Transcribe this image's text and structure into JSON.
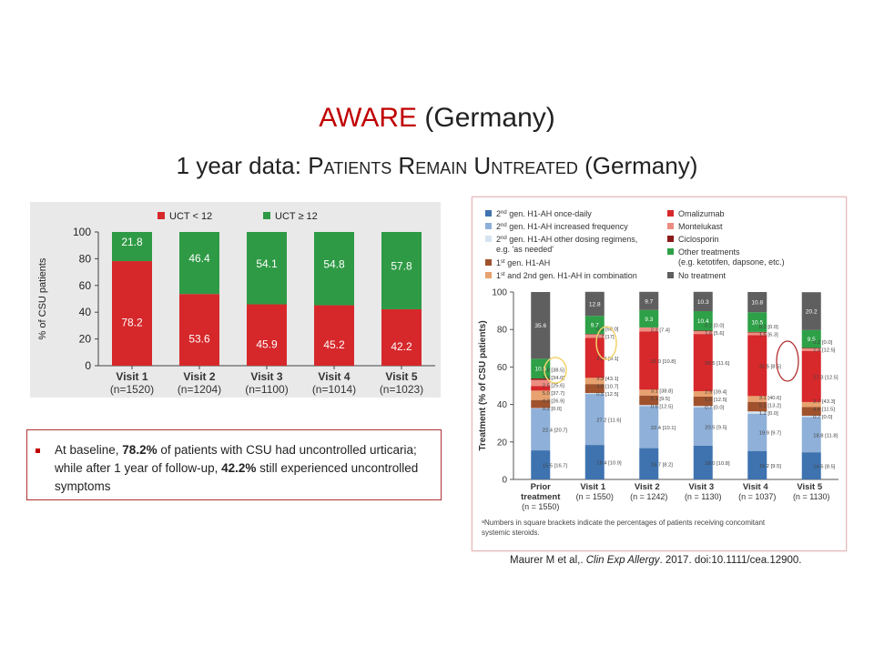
{
  "title": {
    "red_part": "AWARE",
    "black_part": "(Germany)"
  },
  "subtitle": {
    "p1": "1 year data: ",
    "p2": "Patients Remain Untreated",
    "p3": " (Germany)"
  },
  "chart_data": [
    {
      "type": "bar",
      "stacked": true,
      "ylabel": "% of CSU patients",
      "ylim": [
        0,
        100
      ],
      "yticks": [
        "0",
        "20",
        "40",
        "60",
        "80",
        "100"
      ],
      "categories": [
        "Visit 1",
        "Visit 2",
        "Visit 3",
        "Visit 4",
        "Visit 5"
      ],
      "category_sub": [
        "(n=1520)",
        "(n=1204)",
        "(n=1100)",
        "(n=1014)",
        "(n=1023)"
      ],
      "legend_position": "top",
      "series": [
        {
          "name": "UCT < 12",
          "color": "#d6282b",
          "values": [
            78.2,
            53.6,
            45.9,
            45.2,
            42.2
          ],
          "labels": [
            "78.2",
            "53.6",
            "45.9",
            "45.2",
            "42.2"
          ]
        },
        {
          "name": "UCT ≥ 12",
          "color": "#2f9a45",
          "values": [
            21.8,
            46.4,
            54.1,
            54.8,
            57.8
          ],
          "labels": [
            "21.8",
            "46.4",
            "54.1",
            "54.8",
            "57.8"
          ]
        }
      ]
    },
    {
      "type": "bar",
      "stacked": true,
      "ylabel": "Treatment (% of CSU patients)",
      "ylim": [
        0,
        100
      ],
      "yticks": [
        "0",
        "20",
        "40",
        "60",
        "80",
        "100"
      ],
      "categories": [
        "Prior\ntreatment",
        "Visit 1",
        "Visit 2",
        "Visit 3",
        "Visit 4",
        "Visit 5"
      ],
      "category_sub": [
        "(n = 1550)",
        "(n = 1550)",
        "(n = 1242)",
        "(n = 1130)",
        "(n = 1037)",
        "(n = 1130)"
      ],
      "legend": [
        {
          "name": "2nd gen. H1-AH once-daily",
          "sup": "nd",
          "pre": "2",
          "rest": " gen. H1-AH once-daily",
          "color": "#3e73b0"
        },
        {
          "name": "2nd gen. H1-AH increased frequency",
          "pre": "2",
          "sup": "nd",
          "rest": " gen. H1-AH increased frequency",
          "color": "#8fb0d8"
        },
        {
          "name": "2nd gen. H1-AH other dosing regimens, e.g. 'as needed'",
          "pre": "2",
          "sup": "nd",
          "rest": " gen. H1-AH other dosing regimens,",
          "rest2": "e.g. 'as needed'",
          "color": "#d7e3f1"
        },
        {
          "name": "1st gen. H1-AH",
          "pre": "1",
          "sup": "st",
          "rest": " gen. H1-AH",
          "color": "#a0522d"
        },
        {
          "name": "1st and 2nd gen. H1-AH in combination",
          "pre": "1",
          "sup": "st",
          "rest": " and 2nd gen. H1-AH in combination",
          "color": "#e7a26f"
        },
        {
          "name": "Omalizumab",
          "rest": "Omalizumab",
          "color": "#d7282b"
        },
        {
          "name": "Montelukast",
          "rest": "Montelukast",
          "color": "#ec8d82"
        },
        {
          "name": "Ciclosporin",
          "rest": "Ciclosporin",
          "color": "#8b1a1a"
        },
        {
          "name": "Other treatments (e.g. ketotifen, dapsone, etc.)",
          "rest": "Other treatments",
          "rest2": "(e.g. ketotifen, dapsone, etc.)",
          "color": "#2ea047"
        },
        {
          "name": "No treatment",
          "rest": "No treatment",
          "color": "#5f5f5f"
        }
      ],
      "segments": [
        [
          {
            "series": "2nd gen. H1-AH once-daily",
            "value": 15.5,
            "label": "15.5 [16.7]"
          },
          {
            "series": "2nd gen. H1-AH increased frequency",
            "value": 22.4,
            "label": "22.4 [20.7]"
          },
          {
            "series": "2nd gen. H1-AH other dosing regimens, e.g. 'as needed'",
            "value": 0.2,
            "label": "0.2 [0.0]"
          },
          {
            "series": "1st gen. H1-AH",
            "value": 4.3,
            "label": "4.3 [26.9]"
          },
          {
            "series": "1st and 2nd gen. H1-AH in combination",
            "value": 5.0,
            "label": "5.0 [37.7]"
          },
          {
            "series": "Omalizumab",
            "value": 2.5,
            "label": "2.5 [25.6]"
          },
          {
            "series": "Montelukast",
            "value": 3.2,
            "label": "3.2 [34.0]"
          },
          {
            "series": "Ciclosporin",
            "value": 0.8,
            "label": "0.8 [38.5]"
          },
          {
            "series": "Other treatments (e.g. ketotifen, dapsone, etc.)",
            "value": 10.5,
            "label": "10.5"
          },
          {
            "series": "No treatment",
            "value": 35.6,
            "label": "35.6"
          }
        ],
        [
          {
            "series": "2nd gen. H1-AH once-daily",
            "value": 18.4,
            "label": "18.4 [10.9]"
          },
          {
            "series": "2nd gen. H1-AH increased frequency",
            "value": 27.2,
            "label": "27.2 [11.6]"
          },
          {
            "series": "2nd gen. H1-AH other dosing regimens, e.g. 'as needed'",
            "value": 0.5,
            "label": "0.5 [12.5]"
          },
          {
            "series": "1st gen. H1-AH",
            "value": 4.8,
            "label": "4.8 [10.7]"
          },
          {
            "series": "1st and 2nd gen. H1-AH in combination",
            "value": 3.3,
            "label": "3.3 [43.1]"
          },
          {
            "series": "Omalizumab",
            "value": 21.4,
            "label": "21.4 [9.1]"
          },
          {
            "series": "Montelukast",
            "value": 1.7,
            "label": "1.7 [17]"
          },
          {
            "series": "Ciclosporin",
            "value": 0.3,
            "label": "0.3 [50.0]"
          },
          {
            "series": "Other treatments (e.g. ketotifen, dapsone, etc.)",
            "value": 9.7,
            "label": "9.7"
          },
          {
            "series": "No treatment",
            "value": 12.8,
            "label": "12.8"
          }
        ],
        [
          {
            "series": "2nd gen. H1-AH once-daily",
            "value": 16.7,
            "label": "16.7 [8.2]"
          },
          {
            "series": "2nd gen. H1-AH increased frequency",
            "value": 22.4,
            "label": "22.4 [10.1]"
          },
          {
            "series": "2nd gen. H1-AH other dosing regimens, e.g. 'as needed'",
            "value": 0.6,
            "label": "0.6 [12.5]"
          },
          {
            "series": "1st gen. H1-AH",
            "value": 5.1,
            "label": "5.1 [9.5]"
          },
          {
            "series": "1st and 2nd gen. H1-AH in combination",
            "value": 3.1,
            "label": "3.1 [38.8]"
          },
          {
            "series": "Omalizumab",
            "value": 31.0,
            "label": "31.0 [10.8]"
          },
          {
            "series": "Montelukast",
            "value": 2.2,
            "label": "2.2 [7.4]"
          },
          {
            "series": "Ciclosporin",
            "value": 0.0,
            "label": ""
          },
          {
            "series": "Other treatments (e.g. ketotifen, dapsone, etc.)",
            "value": 9.3,
            "label": "9.3"
          },
          {
            "series": "No treatment",
            "value": 9.7,
            "label": "9.7"
          }
        ],
        [
          {
            "series": "2nd gen. H1-AH once-daily",
            "value": 18.0,
            "label": "18.0 [10.8]"
          },
          {
            "series": "2nd gen. H1-AH increased frequency",
            "value": 20.5,
            "label": "20.5 [9.5]"
          },
          {
            "series": "2nd gen. H1-AH other dosing regimens, e.g. 'as needed'",
            "value": 0.7,
            "label": "0.7 [0.0]"
          },
          {
            "series": "1st gen. H1-AH",
            "value": 5.0,
            "label": "5.0 [12.5]"
          },
          {
            "series": "1st and 2nd gen. H1-AH in combination",
            "value": 2.9,
            "label": "2.9 [39.4]"
          },
          {
            "series": "Omalizumab",
            "value": 30.5,
            "label": "30.5 [11.6]"
          },
          {
            "series": "Montelukast",
            "value": 1.6,
            "label": "1.6 [5.6]"
          },
          {
            "series": "Ciclosporin",
            "value": 0.2,
            "label": "0.2 [0.0]"
          },
          {
            "series": "Other treatments (e.g. ketotifen, dapsone, etc.)",
            "value": 10.4,
            "label": "10.4"
          },
          {
            "series": "No treatment",
            "value": 10.3,
            "label": "10.3"
          }
        ],
        [
          {
            "series": "2nd gen. H1-AH once-daily",
            "value": 15.2,
            "label": "15.2 [9.5]"
          },
          {
            "series": "2nd gen. H1-AH increased frequency",
            "value": 19.9,
            "label": "19.9 [9.7]"
          },
          {
            "series": "2nd gen. H1-AH other dosing regimens, e.g. 'as needed'",
            "value": 1.2,
            "label": "1.2 [0.0]"
          },
          {
            "series": "1st gen. H1-AH",
            "value": 5.1,
            "label": "5.1 [13.2]"
          },
          {
            "series": "1st and 2nd gen. H1-AH in combination",
            "value": 3.1,
            "label": "3.1 [40.6]"
          },
          {
            "series": "Omalizumab",
            "value": 32.5,
            "label": "32.5 [8.5]"
          },
          {
            "series": "Montelukast",
            "value": 1.5,
            "label": "1.5 [6.3]"
          },
          {
            "series": "Ciclosporin",
            "value": 0.2,
            "label": "0.2 [0.0]"
          },
          {
            "series": "Other treatments (e.g. ketotifen, dapsone, etc.)",
            "value": 10.5,
            "label": "10.5"
          },
          {
            "series": "No treatment",
            "value": 10.8,
            "label": "10.8"
          }
        ],
        [
          {
            "series": "2nd gen. H1-AH once-daily",
            "value": 14.5,
            "label": "14.5 [8.5]"
          },
          {
            "series": "2nd gen. H1-AH increased frequency",
            "value": 18.8,
            "label": "18.8 [11.8]"
          },
          {
            "series": "2nd gen. H1-AH other dosing regimens, e.g. 'as needed'",
            "value": 0.7,
            "label": "0.7 [0.0]"
          },
          {
            "series": "1st gen. H1-AH",
            "value": 4.6,
            "label": "4.6 [11.5]"
          },
          {
            "series": "1st and 2nd gen. H1-AH in combination",
            "value": 2.7,
            "label": "2.7 [43.3]"
          },
          {
            "series": "Omalizumab",
            "value": 27.3,
            "label": "27.3 [12.5]"
          },
          {
            "series": "Montelukast",
            "value": 1.4,
            "label": "1.4 [12.5]"
          },
          {
            "series": "Ciclosporin",
            "value": 0.2,
            "label": "0.2 [0.0]"
          },
          {
            "series": "Other treatments (e.g. ketotifen, dapsone, etc.)",
            "value": 9.5,
            "label": "9.5"
          },
          {
            "series": "No treatment",
            "value": 20.2,
            "label": "20.2"
          }
        ]
      ],
      "footnote_line1": "ᵃNumbers in square brackets indicate the percentages of patients receiving concomitant",
      "footnote_line2": "systemic steroids."
    }
  ],
  "callout": {
    "t1": "At baseline, ",
    "b1": "78.2%",
    "t2": " of patients with CSU had uncontrolled urticaria; while after 1 year of follow-up, ",
    "b2": "42.2%",
    "t3": " still experienced uncontrolled symptoms"
  },
  "citation": {
    "authors": "Maurer M et al,. ",
    "journal": "Clin Exp Allergy",
    "rest": ". 2017. doi:10.1111/cea.12900."
  }
}
